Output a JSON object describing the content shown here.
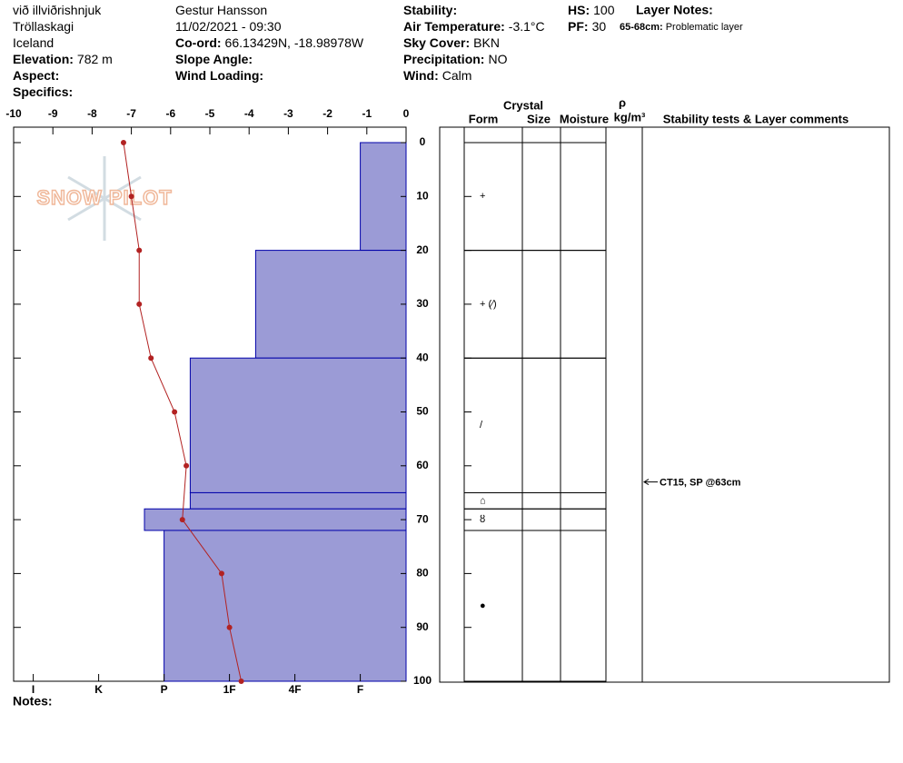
{
  "header": {
    "col1": [
      {
        "text": "við illviðrishnjuk"
      },
      {
        "text": "Tröllaskagi"
      },
      {
        "text": "Iceland"
      },
      {
        "label": "Elevation:",
        "value": "782 m"
      },
      {
        "label": "Aspect:"
      },
      {
        "label": "Specifics:"
      }
    ],
    "col2": [
      {
        "text": "Gestur Hansson"
      },
      {
        "text": "11/02/2021 - 09:30"
      },
      {
        "label": "Co-ord:",
        "value": "66.13429N, -18.98978W"
      },
      {
        "label": "Slope Angle:"
      },
      {
        "label": "Wind Loading:"
      }
    ],
    "col3": [
      {
        "label": "Stability:"
      },
      {
        "label": "Air Temperature:",
        "value": "-3.1°C"
      },
      {
        "label": "Sky Cover:",
        "value": "BKN"
      },
      {
        "label": "Precipitation:",
        "value": "NO"
      },
      {
        "label": "Wind:",
        "value": "Calm"
      }
    ],
    "col4": [
      {
        "label": "HS:",
        "value": "100"
      },
      {
        "label": "PF:",
        "value": "30"
      }
    ],
    "layer_notes_title": "Layer Notes:",
    "layer_note": {
      "label": "65-68cm:",
      "value": "Problematic layer"
    }
  },
  "logo": "SNOW PILOT",
  "chart_data": {
    "type": "snow-profile",
    "xlim": [
      -10,
      0
    ],
    "xticks": [
      -10,
      -9,
      -8,
      -7,
      -6,
      -5,
      -4,
      -3,
      -2,
      -1,
      0
    ],
    "ylim": [
      0,
      100
    ],
    "yticks": [
      0,
      10,
      20,
      30,
      40,
      50,
      60,
      70,
      80,
      90,
      100
    ],
    "hardness_lim": [
      0.3,
      6.3
    ],
    "hardness_ticks": [
      {
        "value": 6,
        "label": "I"
      },
      {
        "value": 5,
        "label": "K"
      },
      {
        "value": 4,
        "label": "P"
      },
      {
        "value": 3,
        "label": "1F"
      },
      {
        "value": 2,
        "label": "4F"
      },
      {
        "value": 1,
        "label": "F"
      }
    ],
    "temperature": {
      "color": "#b22222",
      "depths": [
        0,
        10,
        20,
        30,
        40,
        50,
        60,
        70,
        80,
        90,
        100
      ],
      "values": [
        -7.2,
        -7.0,
        -6.8,
        -6.8,
        -6.5,
        -5.9,
        -5.6,
        -5.7,
        -4.7,
        -4.5,
        -4.2
      ]
    },
    "layer_color": "#9b9bd6",
    "layer_edge": "#0000aa",
    "layers": [
      {
        "top": 0,
        "bottom": 20,
        "hardness": 1,
        "form": "+"
      },
      {
        "top": 20,
        "bottom": 40,
        "hardness": 2.6,
        "form": "+ (⁄)"
      },
      {
        "top": 40,
        "bottom": 65,
        "hardness": 3.6,
        "form": "/"
      },
      {
        "top": 65,
        "bottom": 68,
        "hardness": 3.6,
        "form": "⌂"
      },
      {
        "top": 68,
        "bottom": 72,
        "hardness": 4.3,
        "form": "ȣ"
      },
      {
        "top": 72,
        "bottom": 100,
        "hardness": 4,
        "form": "●"
      }
    ],
    "columns": {
      "crystal": "Crystal",
      "form": "Form",
      "size": "Size",
      "moisture": "Moisture",
      "density_symbol": "ρ",
      "density_unit": "kg/m³",
      "comments": "Stability tests & Layer comments"
    },
    "stability_tests": [
      {
        "depth": 63,
        "label": "CT15, SP @63cm"
      }
    ],
    "notes_label": "Notes:"
  }
}
